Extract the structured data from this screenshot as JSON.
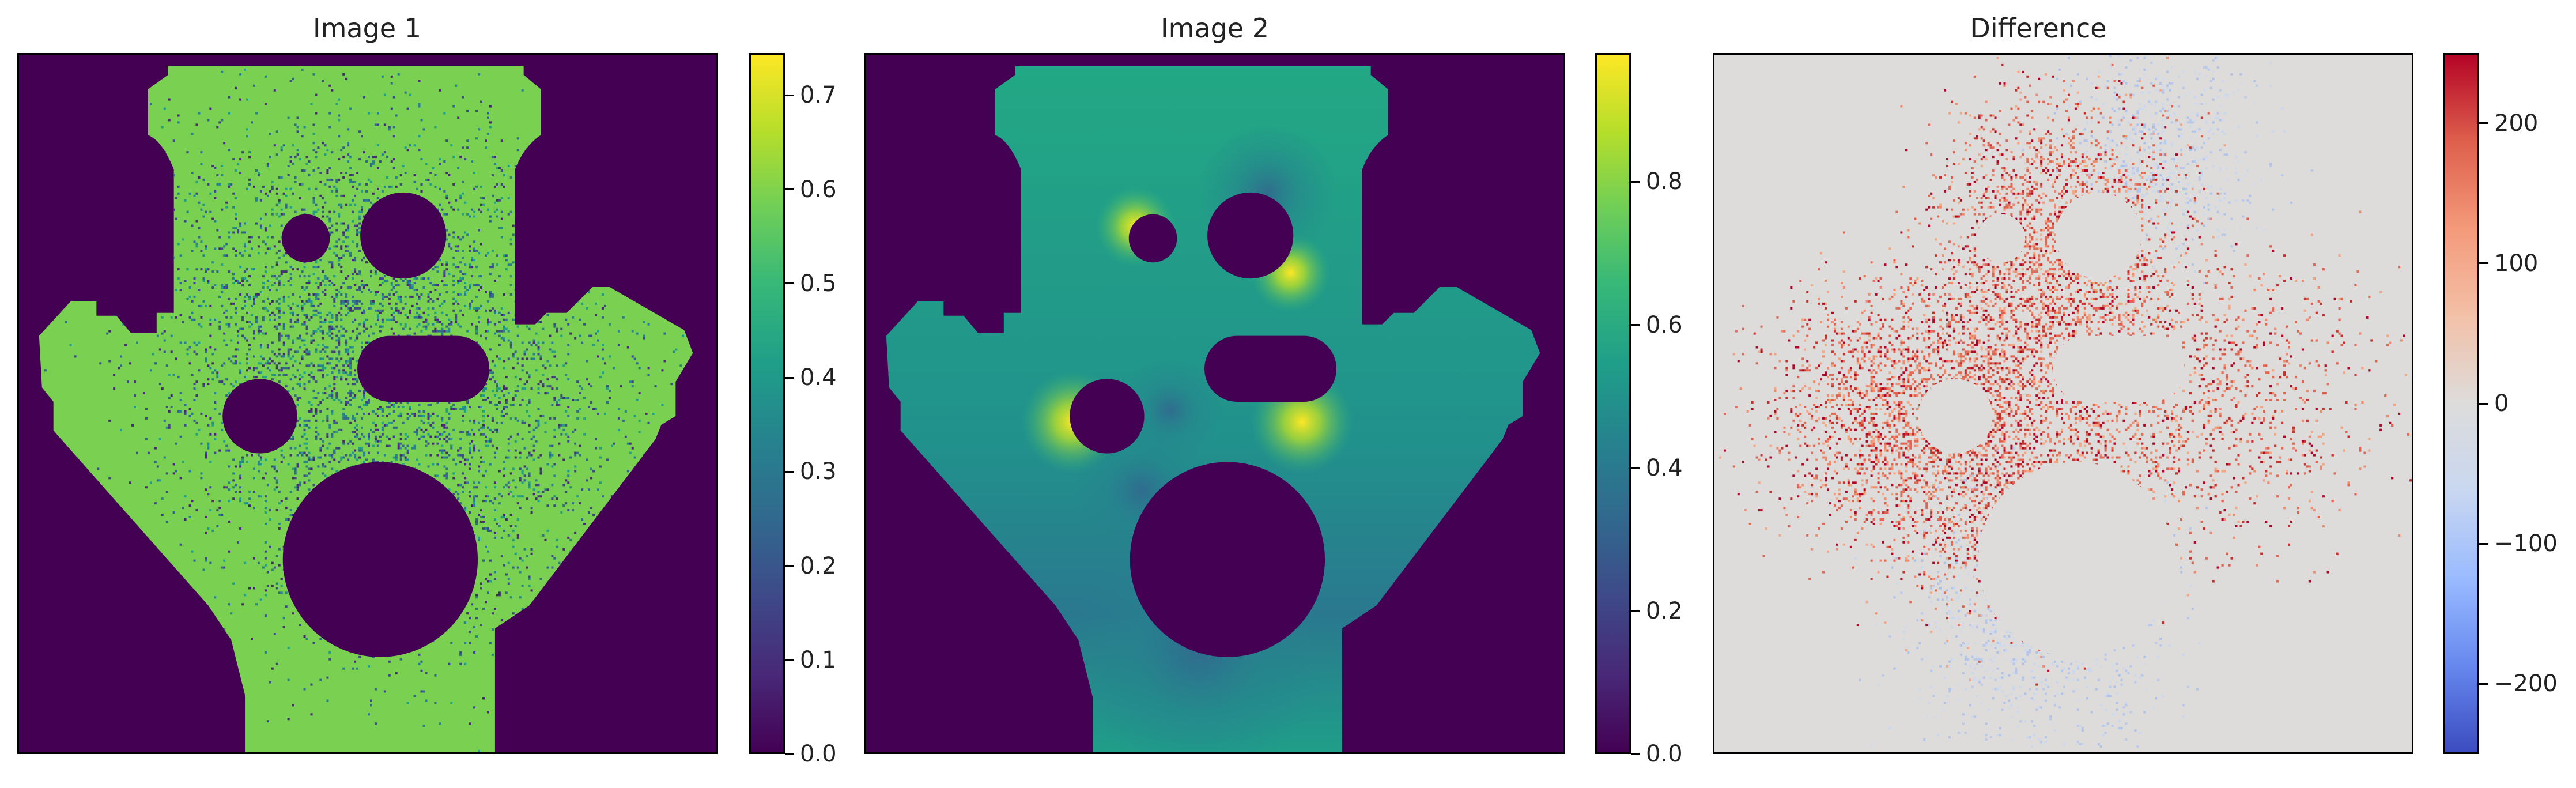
{
  "chart_data": [
    {
      "type": "heatmap",
      "title": "Image 1",
      "colormap": "viridis",
      "background_color": "#440154",
      "shape_color": "#7ad151",
      "colorbar": {
        "range": [
          0.0,
          0.745
        ],
        "ticks": [
          0.0,
          0.1,
          0.2,
          0.3,
          0.4,
          0.5,
          0.6,
          0.7
        ],
        "tick_labels": [
          "0.0",
          "0.1",
          "0.2",
          "0.3",
          "0.4",
          "0.5",
          "0.6",
          "0.7"
        ]
      }
    },
    {
      "type": "heatmap",
      "title": "Image 2",
      "colormap": "viridis",
      "background_color": "#440154",
      "shape_color": "#2a9d8f",
      "colorbar": {
        "range": [
          0.0,
          0.98
        ],
        "ticks": [
          0.0,
          0.2,
          0.4,
          0.6,
          0.8
        ],
        "tick_labels": [
          "0.0",
          "0.2",
          "0.4",
          "0.6",
          "0.8"
        ]
      }
    },
    {
      "type": "heatmap",
      "title": "Difference",
      "colormap": "coolwarm",
      "background_color": "#dddcdb",
      "colorbar": {
        "range": [
          -250,
          250
        ],
        "ticks": [
          -200,
          -100,
          0,
          100,
          200
        ],
        "tick_labels": [
          "−200",
          "−100",
          "0",
          "100",
          "200"
        ]
      }
    }
  ],
  "colors": {
    "viridis": [
      "#440154",
      "#482878",
      "#3e4989",
      "#31688e",
      "#26828e",
      "#1f9e89",
      "#35b779",
      "#6ece58",
      "#b5de2b",
      "#fde725"
    ],
    "coolwarm": [
      "#3b4cc0",
      "#6788ee",
      "#9abbff",
      "#c9d7f0",
      "#dddcdb",
      "#f3c1a8",
      "#f49a7b",
      "#de604d",
      "#b40426"
    ],
    "diff_red": "#c8302b",
    "diff_blue": "#b8c8ec"
  }
}
